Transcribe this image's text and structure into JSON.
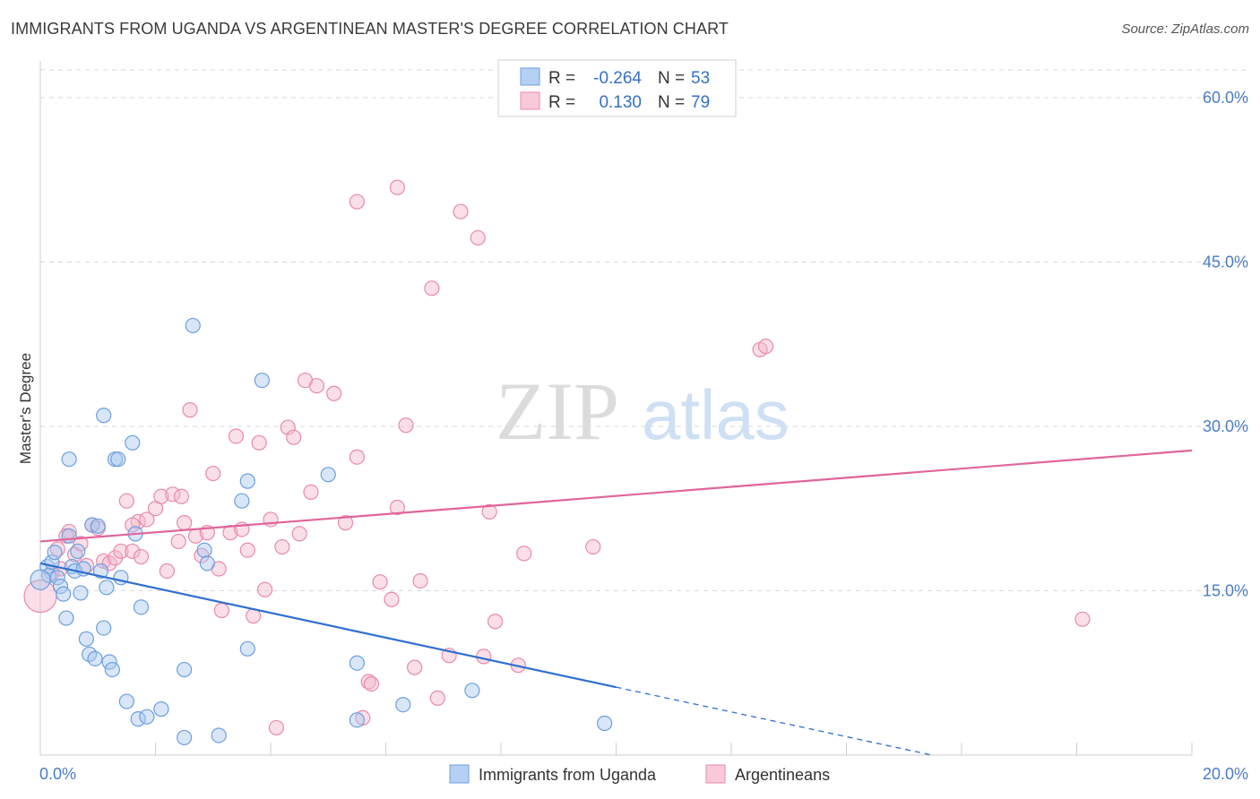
{
  "title": "IMMIGRANTS FROM UGANDA VS ARGENTINEAN MASTER'S DEGREE CORRELATION CHART",
  "source": "Source: ZipAtlas.com",
  "watermark": {
    "zip": "ZIP",
    "atlas": "atlas"
  },
  "colors": {
    "blue_fill": "#a9c8f0",
    "blue_stroke": "#6d9ee0",
    "blue_line": "#2f6fcf",
    "pink_fill": "#f5b8cb",
    "pink_stroke": "#e98aaa",
    "pink_line": "#e0659a",
    "grid": "#d9d9d9",
    "tick_text": "#4a7cc9"
  },
  "stats_box": {
    "rows": [
      {
        "r_label": "R =",
        "r_value": "-0.264",
        "n_label": "N =",
        "n_value": "53",
        "color": "blue"
      },
      {
        "r_label": "R =",
        "r_value": "0.130",
        "n_label": "N =",
        "n_value": "79",
        "color": "pink"
      }
    ]
  },
  "chart_data": {
    "type": "scatter",
    "xlim": [
      0,
      20
    ],
    "ylim": [
      0,
      64
    ],
    "y_ticks": [
      15,
      30,
      45,
      60
    ],
    "y_tick_labels": [
      "15.0%",
      "30.0%",
      "45.0%",
      "60.0%"
    ],
    "x_tick_labels": [
      "0.0%",
      "20.0%"
    ],
    "ylabel": "Master's Degree",
    "grid": true,
    "legend_position": "bottom",
    "series": [
      {
        "name": "Immigrants from Uganda",
        "color": "blue",
        "trend": {
          "x0": 0,
          "y0": 17.5,
          "x1": 10,
          "y1": 6.2,
          "dash_to_x": 15.5
        },
        "points": [
          [
            0.12,
            17.2
          ],
          [
            0.15,
            16.4
          ],
          [
            0.2,
            17.6
          ],
          [
            0.25,
            18.5
          ],
          [
            0.3,
            16.2
          ],
          [
            0.35,
            15.4
          ],
          [
            0.4,
            14.7
          ],
          [
            0.45,
            12.5
          ],
          [
            0.5,
            20.0
          ],
          [
            0.55,
            17.2
          ],
          [
            0.6,
            16.8
          ],
          [
            0.65,
            18.6
          ],
          [
            0.7,
            14.8
          ],
          [
            0.75,
            17.0
          ],
          [
            0.8,
            10.6
          ],
          [
            0.85,
            9.2
          ],
          [
            0.9,
            21.0
          ],
          [
            0.95,
            8.8
          ],
          [
            1.0,
            20.9
          ],
          [
            1.05,
            16.8
          ],
          [
            1.1,
            11.6
          ],
          [
            1.15,
            15.3
          ],
          [
            1.2,
            8.5
          ],
          [
            1.25,
            7.8
          ],
          [
            1.3,
            27.0
          ],
          [
            1.35,
            27.0
          ],
          [
            1.4,
            16.2
          ],
          [
            1.5,
            4.9
          ],
          [
            1.6,
            28.5
          ],
          [
            1.65,
            20.2
          ],
          [
            1.7,
            3.3
          ],
          [
            1.75,
            13.5
          ],
          [
            1.85,
            3.5
          ],
          [
            2.1,
            4.2
          ],
          [
            0.5,
            27.0
          ],
          [
            1.1,
            31.0
          ],
          [
            2.5,
            7.8
          ],
          [
            2.5,
            1.6
          ],
          [
            2.65,
            39.2
          ],
          [
            2.85,
            18.7
          ],
          [
            2.9,
            17.5
          ],
          [
            3.1,
            1.8
          ],
          [
            3.5,
            23.2
          ],
          [
            3.6,
            25.0
          ],
          [
            3.6,
            9.7
          ],
          [
            3.85,
            34.2
          ],
          [
            5.0,
            25.6
          ],
          [
            5.5,
            8.4
          ],
          [
            5.5,
            3.2
          ],
          [
            6.3,
            4.6
          ],
          [
            7.5,
            5.9
          ],
          [
            9.8,
            2.9
          ],
          [
            0.0,
            16.0
          ]
        ]
      },
      {
        "name": "Argentineans",
        "color": "pink",
        "trend": {
          "x0": 0,
          "y0": 19.5,
          "x1": 20,
          "y1": 27.8
        },
        "points": [
          [
            0.0,
            14.5
          ],
          [
            0.3,
            18.8
          ],
          [
            0.35,
            17.0
          ],
          [
            0.5,
            20.4
          ],
          [
            0.6,
            18.3
          ],
          [
            0.7,
            19.3
          ],
          [
            0.8,
            17.3
          ],
          [
            0.9,
            21.0
          ],
          [
            1.0,
            20.7
          ],
          [
            1.1,
            17.7
          ],
          [
            1.2,
            17.5
          ],
          [
            1.3,
            18.0
          ],
          [
            1.4,
            18.6
          ],
          [
            1.5,
            23.2
          ],
          [
            1.6,
            18.6
          ],
          [
            1.7,
            21.3
          ],
          [
            1.75,
            18.1
          ],
          [
            1.85,
            21.5
          ],
          [
            2.0,
            22.5
          ],
          [
            2.1,
            23.6
          ],
          [
            2.2,
            16.8
          ],
          [
            2.3,
            23.8
          ],
          [
            2.4,
            19.5
          ],
          [
            2.45,
            23.6
          ],
          [
            2.5,
            21.2
          ],
          [
            2.6,
            31.5
          ],
          [
            2.7,
            20.0
          ],
          [
            2.8,
            18.2
          ],
          [
            2.9,
            20.3
          ],
          [
            3.0,
            25.7
          ],
          [
            3.1,
            17.0
          ],
          [
            3.15,
            13.2
          ],
          [
            3.3,
            20.3
          ],
          [
            3.4,
            29.1
          ],
          [
            3.5,
            20.6
          ],
          [
            3.6,
            18.7
          ],
          [
            3.7,
            12.7
          ],
          [
            3.8,
            28.5
          ],
          [
            3.9,
            15.1
          ],
          [
            4.0,
            21.5
          ],
          [
            4.1,
            2.5
          ],
          [
            4.2,
            19.0
          ],
          [
            4.3,
            29.9
          ],
          [
            4.4,
            29.0
          ],
          [
            4.5,
            20.2
          ],
          [
            4.6,
            34.2
          ],
          [
            4.7,
            24.0
          ],
          [
            4.8,
            33.7
          ],
          [
            5.1,
            33.0
          ],
          [
            5.3,
            21.2
          ],
          [
            5.5,
            27.2
          ],
          [
            5.5,
            50.5
          ],
          [
            5.6,
            3.4
          ],
          [
            5.7,
            6.7
          ],
          [
            5.75,
            6.5
          ],
          [
            5.9,
            15.8
          ],
          [
            6.1,
            14.2
          ],
          [
            6.2,
            22.6
          ],
          [
            6.2,
            51.8
          ],
          [
            6.35,
            30.1
          ],
          [
            6.5,
            8.0
          ],
          [
            6.6,
            15.9
          ],
          [
            6.8,
            42.6
          ],
          [
            6.9,
            5.2
          ],
          [
            7.1,
            9.1
          ],
          [
            7.3,
            49.6
          ],
          [
            7.6,
            47.2
          ],
          [
            7.7,
            9.0
          ],
          [
            7.8,
            22.2
          ],
          [
            7.9,
            12.2
          ],
          [
            8.3,
            8.2
          ],
          [
            8.4,
            18.4
          ],
          [
            9.6,
            19.0
          ],
          [
            12.5,
            37.0
          ],
          [
            12.6,
            37.3
          ],
          [
            18.1,
            12.4
          ],
          [
            0.2,
            16.6
          ],
          [
            0.45,
            20.0
          ],
          [
            1.6,
            21.0
          ]
        ]
      }
    ]
  }
}
